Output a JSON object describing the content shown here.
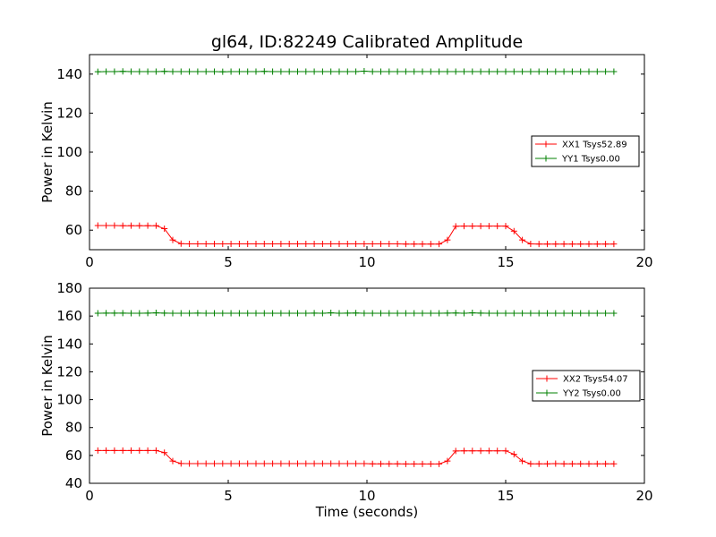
{
  "colors": {
    "xx": "#ff0000",
    "yy": "#008000"
  },
  "chart_data": [
    {
      "type": "line",
      "title": "gl64, ID:82249 Calibrated Amplitude",
      "xlabel": "",
      "ylabel": "Power in Kelvin",
      "xlim": [
        0,
        20
      ],
      "ylim": [
        50,
        150
      ],
      "xticks": [
        0,
        5,
        10,
        15,
        20
      ],
      "yticks": [
        60,
        80,
        100,
        120,
        140
      ],
      "grid": false,
      "marker": "+",
      "legend_position": "right",
      "series": [
        {
          "name": "XX1 Tsys52.89",
          "color": "#ff0000",
          "x": [
            0.3,
            0.6,
            0.9,
            1.2,
            1.5,
            1.8,
            2.1,
            2.4,
            2.7,
            3.0,
            3.3,
            3.6,
            3.9,
            4.2,
            4.5,
            4.8,
            5.1,
            5.4,
            5.7,
            6.0,
            6.3,
            6.6,
            6.9,
            7.2,
            7.5,
            7.8,
            8.1,
            8.4,
            8.7,
            9.0,
            9.3,
            9.6,
            9.9,
            10.2,
            10.5,
            10.8,
            11.1,
            11.4,
            11.7,
            12.0,
            12.3,
            12.6,
            12.9,
            13.2,
            13.5,
            13.8,
            14.1,
            14.4,
            14.7,
            15.0,
            15.3,
            15.6,
            15.9,
            16.2,
            16.5,
            16.8,
            17.1,
            17.4,
            17.7,
            18.0,
            18.3,
            18.6,
            18.9
          ],
          "y": [
            62.4,
            62.4,
            62.4,
            62.3,
            62.3,
            62.3,
            62.3,
            62.3,
            60.8,
            55.0,
            53.1,
            53.0,
            53.0,
            53.0,
            53.0,
            53.0,
            53.0,
            53.0,
            53.0,
            53.0,
            53.0,
            53.0,
            53.0,
            53.0,
            53.0,
            53.0,
            53.0,
            53.0,
            53.0,
            53.0,
            53.0,
            53.0,
            53.0,
            53.0,
            53.0,
            53.0,
            53.0,
            52.9,
            52.9,
            52.9,
            52.9,
            52.9,
            55.0,
            62.0,
            62.1,
            62.1,
            62.1,
            62.1,
            62.1,
            62.1,
            59.5,
            55.0,
            53.0,
            52.9,
            52.9,
            52.9,
            52.9,
            52.9,
            52.9,
            52.9,
            52.9,
            52.9,
            52.9
          ]
        },
        {
          "name": "YY1 Tsys0.00",
          "color": "#008000",
          "x": [
            0.3,
            0.6,
            0.9,
            1.2,
            1.5,
            1.8,
            2.1,
            2.4,
            2.7,
            3.0,
            3.3,
            3.6,
            3.9,
            4.2,
            4.5,
            4.8,
            5.1,
            5.4,
            5.7,
            6.0,
            6.3,
            6.6,
            6.9,
            7.2,
            7.5,
            7.8,
            8.1,
            8.4,
            8.7,
            9.0,
            9.3,
            9.6,
            9.9,
            10.2,
            10.5,
            10.8,
            11.1,
            11.4,
            11.7,
            12.0,
            12.3,
            12.6,
            12.9,
            13.2,
            13.5,
            13.8,
            14.1,
            14.4,
            14.7,
            15.0,
            15.3,
            15.6,
            15.9,
            16.2,
            16.5,
            16.8,
            17.1,
            17.4,
            17.7,
            18.0,
            18.3,
            18.6,
            18.9
          ],
          "y": [
            141.2,
            141.3,
            141.3,
            141.4,
            141.3,
            141.3,
            141.3,
            141.3,
            141.4,
            141.3,
            141.3,
            141.3,
            141.3,
            141.3,
            141.3,
            141.2,
            141.3,
            141.3,
            141.3,
            141.3,
            141.4,
            141.3,
            141.3,
            141.3,
            141.3,
            141.3,
            141.3,
            141.3,
            141.3,
            141.3,
            141.3,
            141.3,
            141.5,
            141.3,
            141.3,
            141.3,
            141.3,
            141.3,
            141.3,
            141.3,
            141.3,
            141.3,
            141.3,
            141.3,
            141.3,
            141.3,
            141.3,
            141.3,
            141.3,
            141.3,
            141.3,
            141.3,
            141.3,
            141.3,
            141.3,
            141.3,
            141.3,
            141.3,
            141.3,
            141.3,
            141.3,
            141.3,
            141.3
          ]
        }
      ]
    },
    {
      "type": "line",
      "title": "",
      "xlabel": "Time (seconds)",
      "ylabel": "Power in Kelvin",
      "xlim": [
        0,
        20
      ],
      "ylim": [
        40,
        180
      ],
      "xticks": [
        0,
        5,
        10,
        15,
        20
      ],
      "yticks": [
        40,
        60,
        80,
        100,
        120,
        140,
        160,
        180
      ],
      "grid": false,
      "marker": "+",
      "legend_position": "right",
      "series": [
        {
          "name": "XX2 Tsys54.07",
          "color": "#ff0000",
          "x": [
            0.3,
            0.6,
            0.9,
            1.2,
            1.5,
            1.8,
            2.1,
            2.4,
            2.7,
            3.0,
            3.3,
            3.6,
            3.9,
            4.2,
            4.5,
            4.8,
            5.1,
            5.4,
            5.7,
            6.0,
            6.3,
            6.6,
            6.9,
            7.2,
            7.5,
            7.8,
            8.1,
            8.4,
            8.7,
            9.0,
            9.3,
            9.6,
            9.9,
            10.2,
            10.5,
            10.8,
            11.1,
            11.4,
            11.7,
            12.0,
            12.3,
            12.6,
            12.9,
            13.2,
            13.5,
            13.8,
            14.1,
            14.4,
            14.7,
            15.0,
            15.3,
            15.6,
            15.9,
            16.2,
            16.5,
            16.8,
            17.1,
            17.4,
            17.7,
            18.0,
            18.3,
            18.6,
            18.9
          ],
          "y": [
            63.5,
            63.5,
            63.5,
            63.5,
            63.5,
            63.5,
            63.5,
            63.5,
            62.0,
            56.0,
            54.2,
            54.1,
            54.1,
            54.1,
            54.1,
            54.1,
            54.1,
            54.1,
            54.1,
            54.1,
            54.1,
            54.1,
            54.1,
            54.1,
            54.1,
            54.1,
            54.1,
            54.1,
            54.1,
            54.1,
            54.1,
            54.1,
            54.1,
            54.0,
            54.0,
            54.0,
            54.0,
            53.9,
            53.9,
            53.9,
            53.9,
            53.9,
            56.0,
            63.2,
            63.3,
            63.3,
            63.3,
            63.3,
            63.3,
            63.3,
            60.8,
            56.0,
            54.0,
            54.0,
            54.0,
            54.1,
            54.0,
            54.0,
            54.0,
            54.0,
            54.0,
            54.0,
            54.0
          ]
        },
        {
          "name": "YY2 Tsys0.00",
          "color": "#008000",
          "x": [
            0.3,
            0.6,
            0.9,
            1.2,
            1.5,
            1.8,
            2.1,
            2.4,
            2.7,
            3.0,
            3.3,
            3.6,
            3.9,
            4.2,
            4.5,
            4.8,
            5.1,
            5.4,
            5.7,
            6.0,
            6.3,
            6.6,
            6.9,
            7.2,
            7.5,
            7.8,
            8.1,
            8.4,
            8.7,
            9.0,
            9.3,
            9.6,
            9.9,
            10.2,
            10.5,
            10.8,
            11.1,
            11.4,
            11.7,
            12.0,
            12.3,
            12.6,
            12.9,
            13.2,
            13.5,
            13.8,
            14.1,
            14.4,
            14.7,
            15.0,
            15.3,
            15.6,
            15.9,
            16.2,
            16.5,
            16.8,
            17.1,
            17.4,
            17.7,
            18.0,
            18.3,
            18.6,
            18.9
          ],
          "y": [
            162.0,
            162.1,
            162.1,
            162.1,
            162.0,
            162.0,
            162.1,
            162.3,
            162.1,
            162.0,
            162.0,
            162.0,
            162.1,
            162.0,
            162.0,
            162.0,
            162.0,
            162.0,
            162.0,
            162.0,
            162.0,
            162.0,
            162.0,
            162.0,
            162.0,
            162.0,
            162.1,
            162.0,
            162.3,
            162.0,
            162.1,
            162.2,
            162.0,
            162.0,
            162.0,
            162.0,
            162.0,
            162.0,
            162.0,
            162.0,
            162.0,
            162.0,
            162.1,
            162.2,
            162.0,
            162.3,
            162.1,
            162.0,
            162.0,
            162.0,
            162.0,
            162.0,
            162.0,
            162.0,
            162.0,
            162.0,
            162.0,
            162.0,
            162.0,
            162.0,
            162.0,
            162.0,
            162.0
          ]
        }
      ]
    }
  ]
}
